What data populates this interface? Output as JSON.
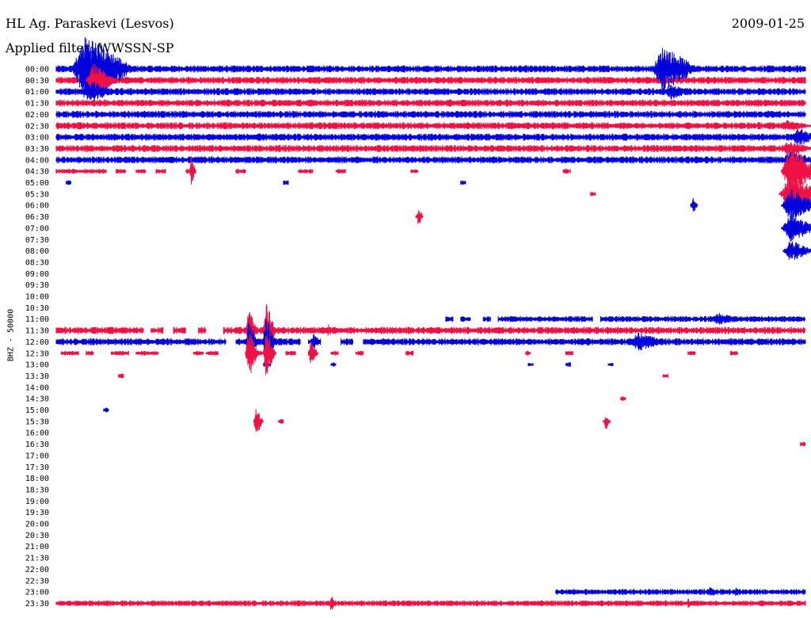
{
  "header": {
    "station": "HL Ag. Paraskevi (Lesvos)",
    "filter": "Applied filter: WWSSN-SP",
    "date": "2009-01-25"
  },
  "chart_data": {
    "type": "line",
    "title": "HL Ag. Paraskevi (Lesvos)",
    "ylabel": "BHZ - 50000",
    "row_labels": [
      "00:00",
      "00:30",
      "01:00",
      "01:30",
      "02:00",
      "02:30",
      "03:00",
      "03:30",
      "04:00",
      "04:30",
      "05:00",
      "05:30",
      "06:00",
      "06:30",
      "07:00",
      "07:30",
      "08:00",
      "08:30",
      "09:00",
      "09:30",
      "10:00",
      "10:30",
      "11:00",
      "11:30",
      "12:00",
      "12:30",
      "13:00",
      "13:30",
      "14:00",
      "14:30",
      "15:00",
      "15:30",
      "16:00",
      "16:30",
      "17:00",
      "17:30",
      "18:00",
      "18:30",
      "19:00",
      "19:30",
      "20:00",
      "20:30",
      "21:00",
      "21:30",
      "22:00",
      "22:30",
      "23:00",
      "23:30"
    ],
    "minutes_per_row": 30,
    "colors": [
      "#0000dd",
      "#ee1144"
    ],
    "rows": [
      {
        "label": "00:00",
        "segments": [
          [
            0,
            30
          ]
        ],
        "noise": 3,
        "events": [
          {
            "m": 1.2,
            "a": 45,
            "d": 2
          },
          {
            "m": 24.3,
            "a": 30,
            "d": 1.5
          }
        ]
      },
      {
        "label": "00:30",
        "segments": [
          [
            0,
            30
          ]
        ],
        "noise": 3,
        "events": [
          {
            "m": 1.5,
            "a": 22,
            "d": 1
          },
          {
            "m": 10.8,
            "a": 4,
            "d": 0.6
          }
        ]
      },
      {
        "label": "01:00",
        "segments": [
          [
            0,
            30
          ]
        ],
        "noise": 3,
        "events": [
          {
            "m": 1.4,
            "a": 14,
            "d": 1
          },
          {
            "m": 24.6,
            "a": 10,
            "d": 1
          }
        ]
      },
      {
        "label": "01:30",
        "segments": [
          [
            0,
            30
          ]
        ],
        "noise": 3,
        "events": [
          {
            "m": 28.5,
            "a": 4,
            "d": 1
          }
        ]
      },
      {
        "label": "02:00",
        "segments": [
          [
            0,
            30
          ]
        ],
        "noise": 3,
        "events": [
          {
            "m": 28.5,
            "a": 5,
            "d": 1
          }
        ]
      },
      {
        "label": "02:30",
        "segments": [
          [
            0,
            30
          ]
        ],
        "noise": 3,
        "events": [
          {
            "m": 29.3,
            "a": 8,
            "d": 1
          },
          {
            "m": 31.4,
            "a": 16,
            "d": 1.6
          },
          {
            "m": 33.6,
            "a": 6,
            "d": 1
          }
        ]
      },
      {
        "label": "03:00",
        "segments": [
          [
            0,
            30
          ]
        ],
        "noise": 3,
        "events": [
          {
            "m": 29.7,
            "a": 12,
            "d": 1
          },
          {
            "m": 33.4,
            "a": 16,
            "d": 2
          }
        ]
      },
      {
        "label": "03:30",
        "segments": [
          [
            0,
            30
          ]
        ],
        "noise": 3,
        "events": [
          {
            "m": 29.3,
            "a": 9,
            "d": 1.2
          }
        ]
      },
      {
        "label": "04:00",
        "segments": [
          [
            0,
            30
          ]
        ],
        "noise": 3,
        "events": [
          {
            "m": 29.4,
            "a": 12,
            "d": 1.2
          },
          {
            "m": 33.3,
            "a": 9,
            "d": 1.4
          }
        ]
      },
      {
        "label": "04:30",
        "segments": [
          [
            0,
            2
          ],
          [
            2.4,
            2.8
          ],
          [
            3.2,
            3.6
          ],
          [
            4,
            4.4
          ],
          [
            5.2,
            5.6
          ],
          [
            7.2,
            7.6
          ],
          [
            9.7,
            10.3
          ],
          [
            11.2,
            11.6
          ],
          [
            14.2,
            14.5
          ],
          [
            20.3,
            20.6
          ]
        ],
        "noise": 2,
        "events": [
          {
            "m": 5.4,
            "a": 20,
            "d": 0.2
          },
          {
            "m": 29.4,
            "a": 35,
            "d": 1.2
          },
          {
            "m": 34.6,
            "a": 6,
            "d": 0.6
          }
        ]
      },
      {
        "label": "05:00",
        "segments": [
          [
            0.4,
            0.6
          ],
          [
            9.1,
            9.3
          ],
          [
            16.2,
            16.4
          ]
        ],
        "noise": 2,
        "events": [
          {
            "m": 33.6,
            "a": 30,
            "d": 1.5
          }
        ]
      },
      {
        "label": "05:30",
        "segments": [
          [
            21.4,
            21.6
          ]
        ],
        "noise": 2,
        "events": [
          {
            "m": 29.4,
            "a": 25,
            "d": 1.5
          }
        ]
      },
      {
        "label": "06:00",
        "segments": [
          [
            25.4,
            25.6
          ]
        ],
        "noise": 2,
        "events": [
          {
            "m": 25.5,
            "a": 10,
            "d": 0.2
          },
          {
            "m": 29.4,
            "a": 22,
            "d": 1.2
          },
          {
            "m": 33.6,
            "a": 14,
            "d": 1.2
          }
        ]
      },
      {
        "label": "06:30",
        "segments": [
          [
            14.4,
            14.6
          ]
        ],
        "noise": 2,
        "events": [
          {
            "m": 14.5,
            "a": 14,
            "d": 0.2
          }
        ]
      },
      {
        "label": "07:00",
        "segments": [],
        "noise": 2,
        "events": [
          {
            "m": 29.4,
            "a": 18,
            "d": 1.2
          }
        ]
      },
      {
        "label": "07:30",
        "segments": [],
        "noise": 2,
        "events": [
          {
            "m": 33.6,
            "a": 14,
            "d": 1.2
          }
        ]
      },
      {
        "label": "08:00",
        "segments": [],
        "noise": 2,
        "events": [
          {
            "m": 29.4,
            "a": 14,
            "d": 1
          }
        ]
      },
      {
        "label": "08:30",
        "segments": [],
        "noise": 2,
        "events": []
      },
      {
        "label": "09:00",
        "segments": [],
        "noise": 2,
        "events": []
      },
      {
        "label": "09:30",
        "segments": [],
        "noise": 2,
        "events": []
      },
      {
        "label": "10:00",
        "segments": [],
        "noise": 2,
        "events": []
      },
      {
        "label": "10:30",
        "segments": [],
        "noise": 2,
        "events": []
      },
      {
        "label": "11:00",
        "segments": [
          [
            15.6,
            15.9
          ],
          [
            16.2,
            16.6
          ],
          [
            17.1,
            17.4
          ],
          [
            17.7,
            21.5
          ],
          [
            21.8,
            30
          ]
        ],
        "noise": 2.5,
        "events": [
          {
            "m": 26.5,
            "a": 8,
            "d": 1.2
          }
        ]
      },
      {
        "label": "11:30",
        "segments": [
          [
            0,
            3.5
          ],
          [
            3.8,
            4.3
          ],
          [
            4.7,
            5.2
          ],
          [
            5.7,
            6.0
          ],
          [
            6.7,
            30
          ]
        ],
        "noise": 3,
        "events": [
          {
            "m": 7.7,
            "a": 30,
            "d": 0.4
          },
          {
            "m": 8.4,
            "a": 40,
            "d": 0.4
          },
          {
            "m": 10.9,
            "a": 10,
            "d": 0.2
          },
          {
            "m": 31,
            "a": 6,
            "d": 1.5
          }
        ]
      },
      {
        "label": "12:00",
        "segments": [
          [
            0,
            6.8
          ],
          [
            7.2,
            9.8
          ],
          [
            10.1,
            10.6
          ],
          [
            11.4,
            11.9
          ],
          [
            12.3,
            30
          ]
        ],
        "noise": 3,
        "events": [
          {
            "m": 7.7,
            "a": 28,
            "d": 0.4
          },
          {
            "m": 8.4,
            "a": 35,
            "d": 0.4
          },
          {
            "m": 10.3,
            "a": 12,
            "d": 0.3
          },
          {
            "m": 23.3,
            "a": 12,
            "d": 1.4
          }
        ]
      },
      {
        "label": "12:30",
        "segments": [
          [
            0.2,
            0.9
          ],
          [
            1.2,
            1.5
          ],
          [
            2.2,
            2.9
          ],
          [
            3.2,
            4.1
          ],
          [
            5.5,
            5.9
          ],
          [
            6.0,
            6.5
          ],
          [
            7.7,
            8.3
          ],
          [
            9.2,
            9.6
          ],
          [
            10.1,
            10.4
          ],
          [
            11.0,
            11.3
          ],
          [
            12.0,
            12.3
          ],
          [
            14.0,
            14.3
          ],
          [
            18.8,
            19.0
          ],
          [
            20.4,
            20.7
          ],
          [
            25.3,
            25.6
          ],
          [
            27.0,
            27.3
          ]
        ],
        "noise": 2,
        "events": [
          {
            "m": 7.7,
            "a": 35,
            "d": 0.4
          },
          {
            "m": 8.4,
            "a": 30,
            "d": 0.4
          },
          {
            "m": 10.2,
            "a": 18,
            "d": 0.3
          }
        ]
      },
      {
        "label": "13:00",
        "segments": [
          [
            8.3,
            8.6
          ],
          [
            11.0,
            11.2
          ],
          [
            18.9,
            19.1
          ],
          [
            20.4,
            20.6
          ],
          [
            22.1,
            22.3
          ]
        ],
        "noise": 2,
        "events": []
      },
      {
        "label": "13:30",
        "segments": [
          [
            2.5,
            2.7
          ],
          [
            24.3,
            24.5
          ]
        ],
        "noise": 2,
        "events": []
      },
      {
        "label": "14:00",
        "segments": [],
        "noise": 2,
        "events": []
      },
      {
        "label": "14:30",
        "segments": [
          [
            22.6,
            22.8
          ]
        ],
        "noise": 2,
        "events": []
      },
      {
        "label": "15:00",
        "segments": [
          [
            1.9,
            2.1
          ]
        ],
        "noise": 2,
        "events": []
      },
      {
        "label": "15:30",
        "segments": [
          [
            8.9,
            9.1
          ],
          [
            21.9,
            22.1
          ]
        ],
        "noise": 2,
        "events": [
          {
            "m": 8.0,
            "a": 20,
            "d": 0.3
          },
          {
            "m": 22.0,
            "a": 12,
            "d": 0.2
          }
        ]
      },
      {
        "label": "16:00",
        "segments": [],
        "noise": 2,
        "events": []
      },
      {
        "label": "16:30",
        "segments": [
          [
            29.8,
            30.1
          ]
        ],
        "noise": 2,
        "events": []
      },
      {
        "label": "17:00",
        "segments": [],
        "noise": 2,
        "events": []
      },
      {
        "label": "17:30",
        "segments": [],
        "noise": 2,
        "events": []
      },
      {
        "label": "18:00",
        "segments": [],
        "noise": 2,
        "events": []
      },
      {
        "label": "18:30",
        "segments": [],
        "noise": 2,
        "events": []
      },
      {
        "label": "19:00",
        "segments": [],
        "noise": 2,
        "events": []
      },
      {
        "label": "19:30",
        "segments": [],
        "noise": 2,
        "events": []
      },
      {
        "label": "20:00",
        "segments": [],
        "noise": 2,
        "events": []
      },
      {
        "label": "20:30",
        "segments": [],
        "noise": 2,
        "events": []
      },
      {
        "label": "21:00",
        "segments": [],
        "noise": 2,
        "events": []
      },
      {
        "label": "21:30",
        "segments": [],
        "noise": 2,
        "events": []
      },
      {
        "label": "22:00",
        "segments": [],
        "noise": 2,
        "events": []
      },
      {
        "label": "22:30",
        "segments": [],
        "noise": 2,
        "events": []
      },
      {
        "label": "23:00",
        "segments": [
          [
            20.0,
            30
          ]
        ],
        "noise": 2.5,
        "events": [
          {
            "m": 26.2,
            "a": 8,
            "d": 0.3
          },
          {
            "m": 27.2,
            "a": 6,
            "d": 0.3
          }
        ]
      },
      {
        "label": "23:30",
        "segments": [
          [
            0,
            30
          ]
        ],
        "noise": 2.5,
        "events": [
          {
            "m": 11.0,
            "a": 12,
            "d": 0.2
          },
          {
            "m": 25.3,
            "a": 6,
            "d": 0.3
          }
        ]
      }
    ]
  }
}
